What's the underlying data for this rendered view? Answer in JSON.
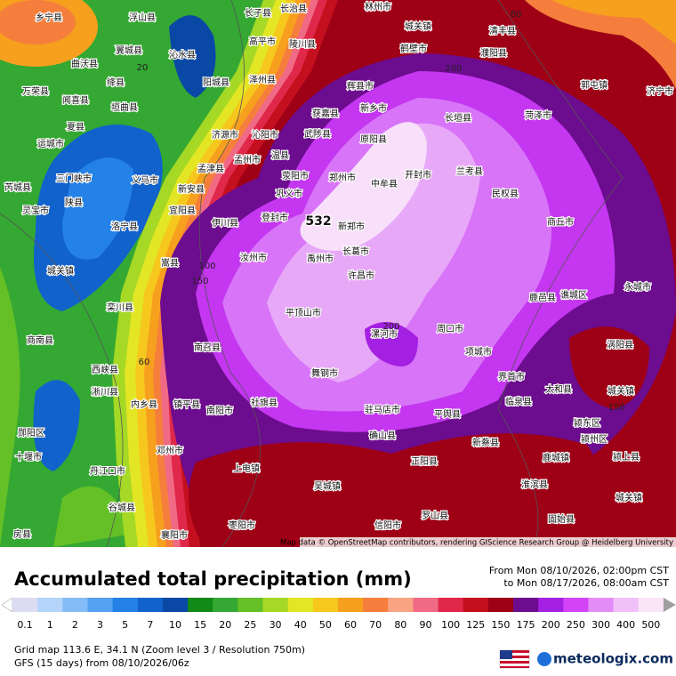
{
  "map": {
    "attribution": "Map data © OpenStreetMap contributors, rendering GIScience Research Group @ Heidelberg University",
    "max_label": "532",
    "contour_labels": [
      "20",
      "100",
      "150",
      "60",
      "200",
      "80",
      "200",
      "150"
    ],
    "places": [
      "乡宁县",
      "浮山县",
      "长子县",
      "长治县",
      "林州市",
      "城关镇",
      "清丰县",
      "鹤壁市",
      "濮阳县",
      "沁水县",
      "高平市",
      "陵川县",
      "翼城县",
      "曲沃县",
      "绛县",
      "阳城县",
      "泽州县",
      "辉县市",
      "新乡市",
      "长垣县",
      "菏泽市",
      "郭屯镇",
      "济宁市",
      "闻喜县",
      "垣曲县",
      "获嘉县",
      "万荣县",
      "夏县",
      "济源市",
      "沁阳市",
      "武陟县",
      "原阳县",
      "运城市",
      "孟州市",
      "兰考县",
      "孟津县",
      "温县",
      "荥阳市",
      "郑州市",
      "开封市",
      "中牟县",
      "三门峡市",
      "义马市",
      "新安县",
      "巩义市",
      "民权县",
      "芮城县",
      "新郑市",
      "宜阳县",
      "伊川县",
      "登封市",
      "长葛市",
      "商丘市",
      "洛宁县",
      "陕县",
      "灵宝市",
      "汝州市",
      "禹州市",
      "许昌市",
      "嵩县",
      "城关镇",
      "栾川县",
      "平顶山市",
      "鹿邑县",
      "谯城区",
      "永城市",
      "漯河市",
      "周口市",
      "涡阳县",
      "项城市",
      "商南县",
      "南召县",
      "舞钢市",
      "界首市",
      "太和县",
      "城关镇",
      "西峡县",
      "淅川县",
      "内乡县",
      "镇平县",
      "社旗县",
      "南阳市",
      "驻马店市",
      "平舆县",
      "临泉县",
      "颍东区",
      "颍州区",
      "郧阳区",
      "邓州市",
      "确山县",
      "新蔡县",
      "鹿城镇",
      "颍上县",
      "十堰市",
      "正阳县",
      "上电镇",
      "丹江口市",
      "淮滨县",
      "吴城镇",
      "谷城县",
      "罗山县",
      "信阳市",
      "固始县",
      "枣阳市",
      "襄阳市",
      "城关镇",
      "房县"
    ]
  },
  "legend": {
    "title": "Accumulated total precipitation (mm)",
    "labels": [
      0.1,
      1,
      2,
      3,
      5,
      7,
      10,
      15,
      20,
      25,
      30,
      40,
      50,
      60,
      70,
      80,
      90,
      100,
      125,
      150,
      175,
      200,
      250,
      300,
      400,
      500
    ],
    "colors": [
      "#dcdcf2",
      "#b4d4fa",
      "#84bcf8",
      "#54a2f0",
      "#2482e6",
      "#1262cc",
      "#0a48a6",
      "#128a18",
      "#34a832",
      "#64c026",
      "#a6d826",
      "#e2e624",
      "#f6c81e",
      "#f6a01e",
      "#f67e3c",
      "#f8a482",
      "#f06a86",
      "#e0284a",
      "#c4101e",
      "#9e0016",
      "#6c0c8e",
      "#a420e2",
      "#d244f6",
      "#e48cf8",
      "#f2c0f8",
      "#fae4f8"
    ]
  },
  "header": {
    "from": "From Mon 08/10/2026, 02:00pm CST",
    "to": "to Mon 08/17/2026, 08:00am CST"
  },
  "footer": {
    "grid": "Grid map 113.6 E, 34.1 N (Zoom level 3 / Resolution 750m)",
    "model": "GFS (15 days) from  08/10/2026/06z",
    "brand": "meteologix.com"
  }
}
